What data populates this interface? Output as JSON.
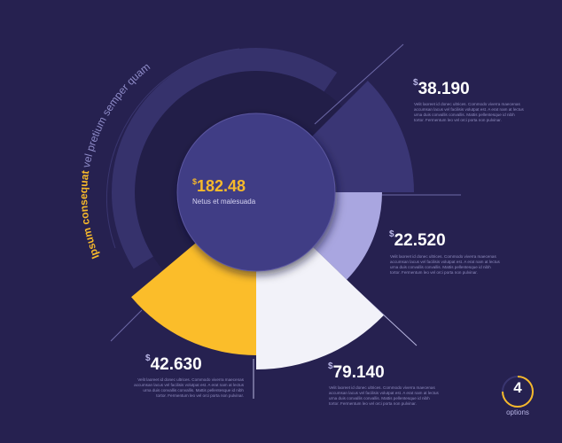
{
  "center": {
    "value": "182.48",
    "currency": "$",
    "label": "Netus et malesuada"
  },
  "arc_title": {
    "highlight": "Ipsum consequat",
    "rest": " vel pretium semper quam"
  },
  "segments": [
    {
      "value": "38.190",
      "currency": "$",
      "description": "Velit laoreet id donec ultrices. Commodo viverra maecenas accumsan lacus vel facilisis volutpat est. A erat nam at lectus urna duis convallis convallis. Mattis pellentesque id nibh tortor. Fermentum leo vel orci porta non pulvinar.",
      "color": "#3a3675"
    },
    {
      "value": "22.520",
      "currency": "$",
      "description": "Velit laoreet id donec ultrices. Commodo viverra maecenas accumsan lacus vel facilisis volutpat est. A erat nam at lectus urna duis convallis convallis. Mattis pellentesque id nibh tortor. Fermentum leo vel orci porta non pulvinar.",
      "color": "#a9a6e0"
    },
    {
      "value": "79.140",
      "currency": "$",
      "description": "Velit laoreet id donec ultrices. Commodo viverra maecenas accumsan lacus vel facilisis volutpat est. A erat nam at lectus urna duis convallis convallis. Mattis pellentesque id nibh tortor. Fermentum leo vel orci porta non pulvinar.",
      "color": "#f2f2f9"
    },
    {
      "value": "42.630",
      "currency": "$",
      "description": "Velit laoreet id donec ultrices. Commodo viverra maecenas accumsan lacus vel facilisis volutpat est. A erat nam at lectus urna duis convallis convallis. Mattis pellentesque id nibh tortor. Fermentum leo vel orci porta non pulvinar.",
      "color": "#fbbd2a"
    }
  ],
  "options": {
    "count": "4",
    "label": "options"
  }
}
